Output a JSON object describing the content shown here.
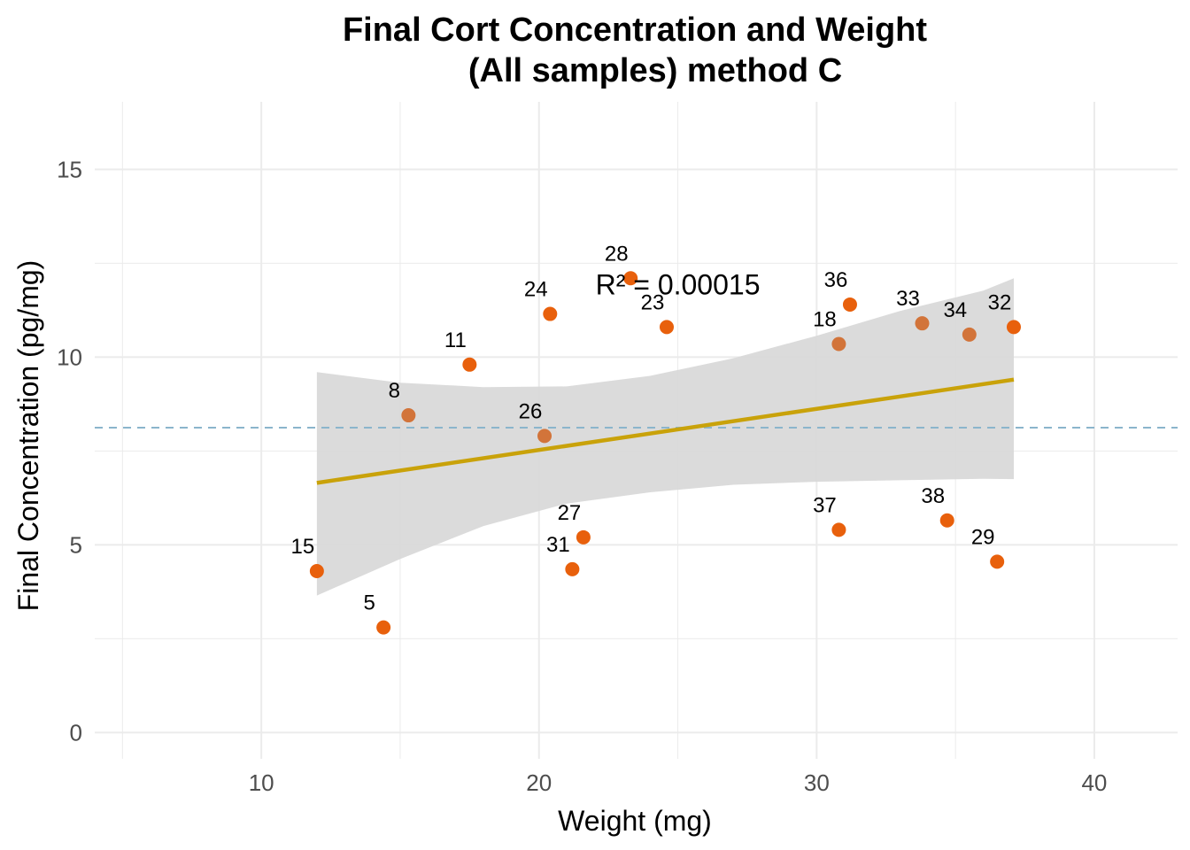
{
  "chart_data": {
    "type": "scatter",
    "title": [
      "Final Cort Concentration and Weight",
      "(All samples) method C"
    ],
    "xlabel": "Weight (mg)",
    "ylabel": "Final Concentration (pg/mg)",
    "xlim": [
      4,
      43
    ],
    "ylim": [
      -0.7,
      16.8
    ],
    "xticks": [
      10,
      20,
      30,
      40
    ],
    "xtick_labels": [
      "10",
      "20",
      "30",
      "40"
    ],
    "yticks": [
      0,
      5,
      10,
      15
    ],
    "ytick_labels": [
      "0",
      "5",
      "10",
      "15"
    ],
    "grid": true,
    "legend": "none",
    "points": [
      {
        "label": "15",
        "x": 12.0,
        "y": 4.3,
        "color": "#E8600C"
      },
      {
        "label": "5",
        "x": 14.4,
        "y": 2.8,
        "color": "#E8600C"
      },
      {
        "label": "8",
        "x": 15.3,
        "y": 8.45,
        "color": "#D2743A"
      },
      {
        "label": "11",
        "x": 17.5,
        "y": 9.8,
        "color": "#E8600C"
      },
      {
        "label": "24",
        "x": 20.4,
        "y": 11.15,
        "color": "#E8600C"
      },
      {
        "label": "26",
        "x": 20.2,
        "y": 7.9,
        "color": "#D2743A"
      },
      {
        "label": "27",
        "x": 21.6,
        "y": 5.2,
        "color": "#E8600C"
      },
      {
        "label": "31",
        "x": 21.2,
        "y": 4.35,
        "color": "#E8600C"
      },
      {
        "label": "28",
        "x": 23.3,
        "y": 12.1,
        "color": "#E8600C"
      },
      {
        "label": "23",
        "x": 24.6,
        "y": 10.8,
        "color": "#E8600C"
      },
      {
        "label": "18",
        "x": 30.8,
        "y": 10.35,
        "color": "#D2743A"
      },
      {
        "label": "36",
        "x": 31.2,
        "y": 11.4,
        "color": "#E8600C"
      },
      {
        "label": "37",
        "x": 30.8,
        "y": 5.4,
        "color": "#E8600C"
      },
      {
        "label": "33",
        "x": 33.8,
        "y": 10.9,
        "color": "#D2743A"
      },
      {
        "label": "34",
        "x": 35.5,
        "y": 10.6,
        "color": "#D2743A"
      },
      {
        "label": "38",
        "x": 34.7,
        "y": 5.65,
        "color": "#E8600C"
      },
      {
        "label": "32",
        "x": 37.1,
        "y": 10.8,
        "color": "#E8600C"
      },
      {
        "label": "29",
        "x": 36.5,
        "y": 4.55,
        "color": "#E8600C"
      }
    ],
    "fit_line": {
      "x": [
        12.0,
        37.1
      ],
      "y": [
        6.65,
        9.4
      ],
      "color": "#C9A20A"
    },
    "confidence_band": {
      "x": [
        12.0,
        15.0,
        18.0,
        21.0,
        24.0,
        27.0,
        30.0,
        33.0,
        36.0,
        37.1
      ],
      "upper": [
        9.6,
        9.32,
        9.2,
        9.22,
        9.5,
        9.97,
        10.57,
        11.23,
        11.77,
        12.1
      ],
      "lower": [
        3.65,
        4.62,
        5.5,
        6.1,
        6.4,
        6.6,
        6.68,
        6.72,
        6.76,
        6.75
      ],
      "color": "#d9d9d9"
    },
    "hline": {
      "y": 8.12,
      "color": "#8BB5CC",
      "style": "dashed"
    },
    "annotation": {
      "text": "R² = 0.00015",
      "x": 25.0,
      "y": 11.95
    }
  }
}
